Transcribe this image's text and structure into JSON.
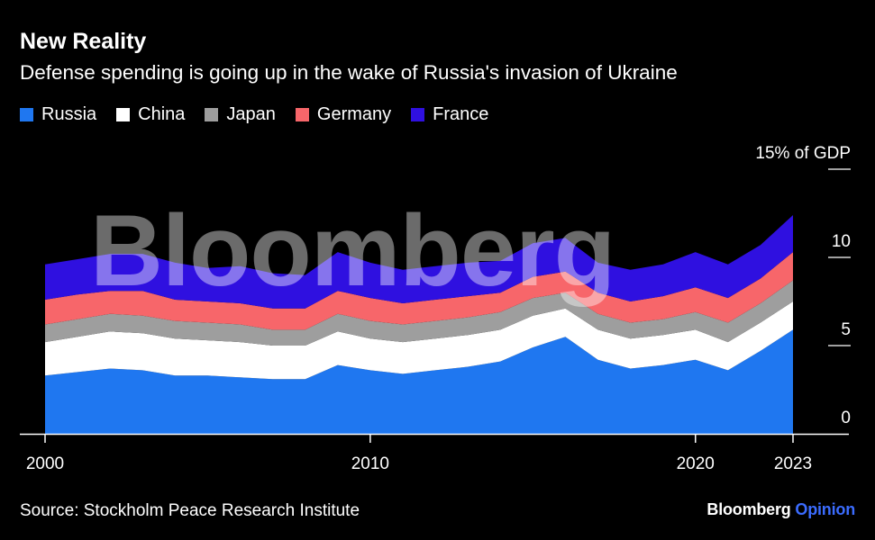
{
  "header": {
    "title": "New Reality",
    "subtitle": "Defense spending is going up in the wake of Russia's invasion of Ukraine"
  },
  "source": "Source: Stockholm Peace Research Institute",
  "brand": {
    "name": "Bloomberg",
    "section": "Opinion"
  },
  "watermark": "Bloomberg",
  "colors": {
    "background": "#000000",
    "russia": "#1f77f0",
    "china": "#ffffff",
    "japan": "#9e9e9e",
    "germany": "#f7666a",
    "france": "#2f10e0",
    "opinion_accent": "#3b6cff"
  },
  "chart_data": {
    "type": "area",
    "stacked": true,
    "unit_label": "15% of GDP",
    "x": [
      2000,
      2001,
      2002,
      2003,
      2004,
      2005,
      2006,
      2007,
      2008,
      2009,
      2010,
      2011,
      2012,
      2013,
      2014,
      2015,
      2016,
      2017,
      2018,
      2019,
      2020,
      2021,
      2022,
      2023
    ],
    "x_ticks": [
      "2000",
      "2010",
      "2020",
      "2023"
    ],
    "y_ticks": [
      "0",
      "5",
      "10",
      "15% of GDP"
    ],
    "ylim": [
      0,
      15
    ],
    "grid": false,
    "legend_position": "top-left",
    "series": [
      {
        "name": "Russia",
        "color": "#1f77f0",
        "values": [
          3.3,
          3.5,
          3.7,
          3.6,
          3.3,
          3.3,
          3.2,
          3.1,
          3.1,
          3.9,
          3.6,
          3.4,
          3.6,
          3.8,
          4.1,
          4.9,
          5.5,
          4.2,
          3.7,
          3.9,
          4.2,
          3.6,
          4.7,
          5.9
        ]
      },
      {
        "name": "China",
        "color": "#ffffff",
        "values": [
          1.9,
          2.0,
          2.1,
          2.1,
          2.1,
          2.0,
          2.0,
          1.9,
          1.9,
          1.9,
          1.8,
          1.8,
          1.8,
          1.8,
          1.8,
          1.8,
          1.6,
          1.7,
          1.7,
          1.7,
          1.7,
          1.6,
          1.6,
          1.6
        ]
      },
      {
        "name": "Japan",
        "color": "#9e9e9e",
        "values": [
          1.0,
          1.0,
          1.0,
          1.0,
          1.0,
          1.0,
          1.0,
          0.9,
          0.9,
          1.0,
          1.0,
          1.0,
          1.0,
          1.0,
          1.0,
          1.0,
          0.9,
          0.9,
          0.9,
          0.9,
          1.0,
          1.1,
          1.1,
          1.2
        ]
      },
      {
        "name": "Germany",
        "color": "#f7666a",
        "values": [
          1.4,
          1.4,
          1.3,
          1.4,
          1.2,
          1.2,
          1.2,
          1.2,
          1.2,
          1.3,
          1.3,
          1.2,
          1.2,
          1.2,
          1.1,
          1.2,
          1.2,
          1.2,
          1.2,
          1.3,
          1.4,
          1.4,
          1.4,
          1.6
        ]
      },
      {
        "name": "France",
        "color": "#2f10e0",
        "values": [
          2.0,
          2.0,
          2.1,
          2.1,
          2.1,
          1.9,
          2.1,
          2.0,
          1.9,
          2.2,
          2.0,
          1.9,
          1.9,
          1.9,
          1.8,
          1.9,
          1.9,
          1.7,
          1.8,
          1.8,
          2.0,
          1.9,
          1.9,
          2.1
        ]
      }
    ]
  }
}
